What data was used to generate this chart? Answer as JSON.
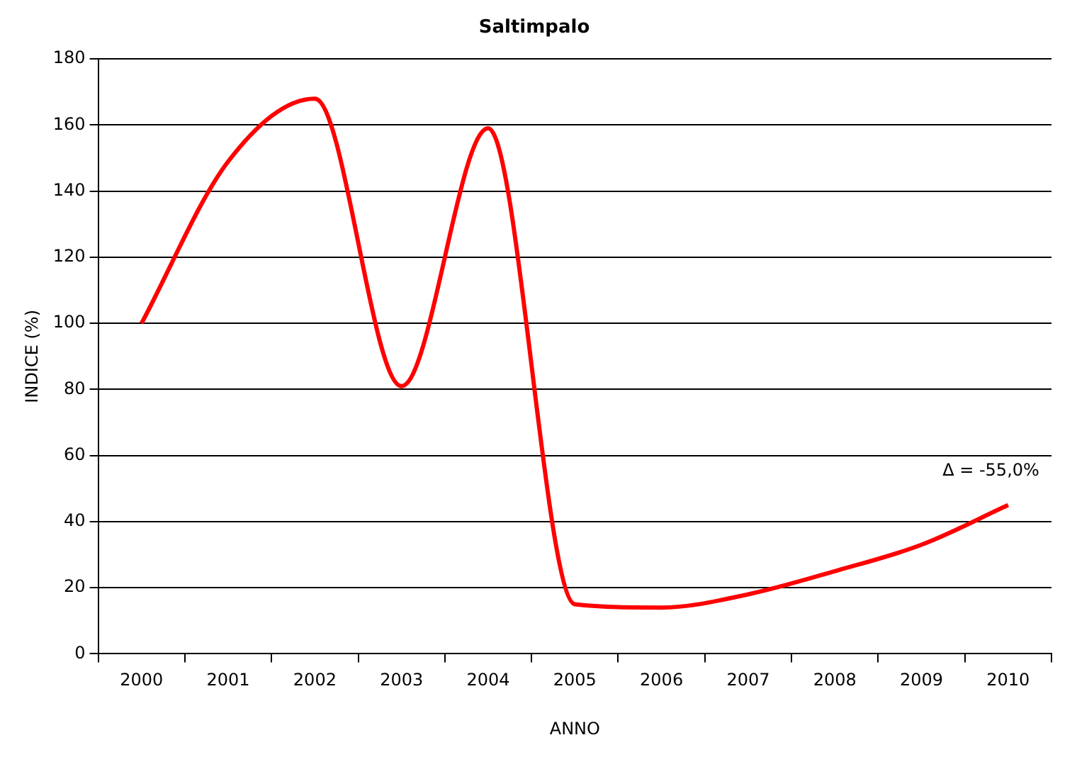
{
  "chart_data": {
    "type": "line",
    "title": "Saltimpalo",
    "xlabel": "ANNO",
    "ylabel": "INDICE (%)",
    "categories": [
      "2000",
      "2001",
      "2002",
      "2003",
      "2004",
      "2005",
      "2006",
      "2007",
      "2008",
      "2009",
      "2010"
    ],
    "series": [
      {
        "color": "#ff0000",
        "values": [
          100,
          149,
          168,
          81,
          159,
          15,
          14,
          18,
          25,
          33,
          45
        ]
      }
    ],
    "ylim": [
      0,
      180
    ],
    "yticks": [
      0,
      20,
      40,
      60,
      80,
      100,
      120,
      140,
      160,
      180
    ],
    "grid": "y",
    "legend": false,
    "marker": "none",
    "line_style": "solid",
    "annotations": [
      {
        "text": "Δ = -55,0%",
        "x": "2010",
        "y": 45
      }
    ]
  }
}
